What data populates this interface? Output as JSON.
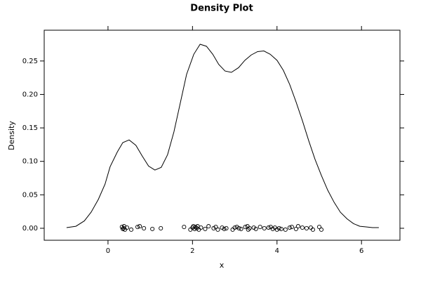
{
  "chart_data": {
    "type": "density",
    "title": "Density Plot",
    "xlabel": "x",
    "ylabel": "Density",
    "color": "#000000",
    "x": [
      -0.98,
      -0.76,
      -0.56,
      -0.4,
      -0.23,
      -0.07,
      0.05,
      0.22,
      0.35,
      0.5,
      0.66,
      0.81,
      0.96,
      1.11,
      1.26,
      1.41,
      1.56,
      1.71,
      1.86,
      2.03,
      2.18,
      2.33,
      2.48,
      2.62,
      2.77,
      2.92,
      3.09,
      3.24,
      3.39,
      3.54,
      3.69,
      3.84,
      4.0,
      4.15,
      4.3,
      4.45,
      4.6,
      4.75,
      4.9,
      5.05,
      5.2,
      5.35,
      5.5,
      5.66,
      5.81,
      5.96,
      6.11,
      6.26,
      6.41
    ],
    "values": [
      0.001,
      0.003,
      0.011,
      0.024,
      0.043,
      0.066,
      0.092,
      0.114,
      0.128,
      0.132,
      0.124,
      0.108,
      0.093,
      0.087,
      0.091,
      0.11,
      0.144,
      0.187,
      0.23,
      0.26,
      0.275,
      0.272,
      0.26,
      0.245,
      0.235,
      0.233,
      0.24,
      0.251,
      0.259,
      0.264,
      0.265,
      0.26,
      0.251,
      0.236,
      0.215,
      0.189,
      0.161,
      0.131,
      0.103,
      0.079,
      0.057,
      0.039,
      0.024,
      0.014,
      0.007,
      0.003,
      0.002,
      0.001,
      0.001
    ],
    "rug_x": [
      0.33,
      0.35,
      0.37,
      0.38,
      0.4,
      0.45,
      0.55,
      0.7,
      0.75,
      0.85,
      1.05,
      1.25,
      1.8,
      1.95,
      2.0,
      2.02,
      2.05,
      2.07,
      2.1,
      2.12,
      2.15,
      2.2,
      2.3,
      2.38,
      2.5,
      2.55,
      2.6,
      2.7,
      2.75,
      2.8,
      2.95,
      3.0,
      3.05,
      3.1,
      3.15,
      3.25,
      3.3,
      3.32,
      3.35,
      3.45,
      3.5,
      3.6,
      3.7,
      3.8,
      3.85,
      3.9,
      3.95,
      4.0,
      4.05,
      4.1,
      4.2,
      4.3,
      4.35,
      4.45,
      4.5,
      4.6,
      4.7,
      4.8,
      4.85,
      5.0,
      5.05
    ],
    "rug_y": [
      0.002,
      -0.001,
      0.0,
      0.003,
      -0.002,
      0.001,
      -0.002,
      0.002,
      0.003,
      0.0,
      -0.001,
      0.0,
      0.002,
      -0.002,
      0.001,
      0.003,
      -0.001,
      0.002,
      0.0,
      0.003,
      -0.002,
      0.001,
      -0.001,
      0.003,
      0.0,
      0.002,
      -0.002,
      0.001,
      -0.001,
      0.0,
      -0.002,
      0.001,
      0.002,
      0.0,
      -0.001,
      0.002,
      0.003,
      -0.002,
      0.0,
      0.001,
      -0.001,
      0.002,
      0.0,
      0.001,
      0.002,
      -0.001,
      0.001,
      -0.002,
      0.0,
      -0.001,
      -0.002,
      0.001,
      0.002,
      -0.001,
      0.003,
      0.001,
      0.0,
      0.001,
      -0.002,
      0.002,
      -0.002
    ],
    "xlim": [
      -1.51,
      6.91
    ],
    "ylim": [
      -0.0179,
      0.296
    ],
    "xticks": [
      0,
      2,
      4,
      6
    ],
    "yticks": [
      {
        "value": 0,
        "label": "0.00"
      },
      {
        "value": 0.05,
        "label": "0.05"
      },
      {
        "value": 0.1,
        "label": "0.10"
      },
      {
        "value": 0.15,
        "label": "0.15"
      },
      {
        "value": 0.2,
        "label": "0.20"
      },
      {
        "value": 0.25,
        "label": "0.25"
      }
    ]
  }
}
